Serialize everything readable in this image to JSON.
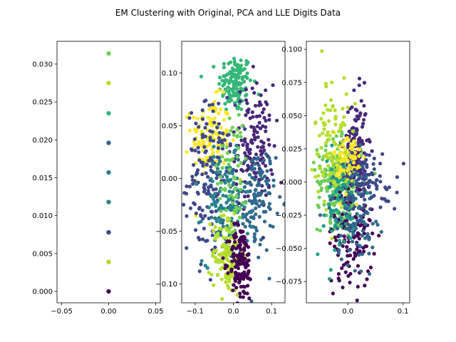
{
  "figure": {
    "title": "EM Clustering with Original, PCA and LLE Digits Data"
  },
  "palette": [
    "#440154",
    "#482878",
    "#3e4989",
    "#31688e",
    "#26828e",
    "#1f9e89",
    "#35b779",
    "#6ece58",
    "#b5de2b",
    "#fde725"
  ],
  "chart_data": [
    {
      "type": "scatter",
      "subplot": "original",
      "xlim": [
        -0.055,
        0.055
      ],
      "ylim": [
        -0.0015,
        0.033
      ],
      "x_ticks": [
        -0.05,
        0.0,
        0.05
      ],
      "x_tick_labels": [
        "−0.05",
        "0.00",
        "0.05"
      ],
      "y_ticks": [
        0.0,
        0.005,
        0.01,
        0.015,
        0.02,
        0.025,
        0.03
      ],
      "y_tick_labels": [
        "0.000",
        "0.005",
        "0.010",
        "0.015",
        "0.020",
        "0.025",
        "0.030"
      ],
      "points": [
        {
          "x": 0.0,
          "y": 0.0,
          "c": 0
        },
        {
          "x": 0.0,
          "y": 0.0039,
          "c": 7
        },
        {
          "x": 0.0,
          "y": 0.0039,
          "c": 8
        },
        {
          "x": 0.0,
          "y": 0.0078,
          "c": 2
        },
        {
          "x": 0.0,
          "y": 0.0118,
          "c": 4
        },
        {
          "x": 0.0,
          "y": 0.0157,
          "c": 4
        },
        {
          "x": 0.0,
          "y": 0.0196,
          "c": 3
        },
        {
          "x": 0.0,
          "y": 0.0235,
          "c": 6
        },
        {
          "x": 0.0,
          "y": 0.0275,
          "c": 8
        },
        {
          "x": 0.0,
          "y": 0.0314,
          "c": 7
        }
      ]
    },
    {
      "type": "scatter",
      "subplot": "pca",
      "xlim": [
        -0.135,
        0.135
      ],
      "ylim": [
        -0.118,
        0.13
      ],
      "x_ticks": [
        -0.1,
        0.0,
        0.1
      ],
      "x_tick_labels": [
        "−0.1",
        "0.0",
        "0.1"
      ],
      "y_ticks": [
        -0.1,
        -0.05,
        0.0,
        0.05,
        0.1
      ],
      "y_tick_labels": [
        "−0.10",
        "−0.05",
        "0.00",
        "0.05",
        "0.10"
      ],
      "clusters": [
        {
          "c": 6,
          "cx": 0.005,
          "cy": 0.09,
          "sx": 0.022,
          "sy": 0.014,
          "n": 140
        },
        {
          "c": 9,
          "cx": -0.06,
          "cy": 0.04,
          "sx": 0.025,
          "sy": 0.018,
          "n": 130
        },
        {
          "c": 1,
          "cx": 0.055,
          "cy": 0.03,
          "sx": 0.025,
          "sy": 0.03,
          "n": 150
        },
        {
          "c": 2,
          "cx": -0.06,
          "cy": 0.0,
          "sx": 0.03,
          "sy": 0.035,
          "n": 170
        },
        {
          "c": 3,
          "cx": 0.06,
          "cy": -0.02,
          "sx": 0.025,
          "sy": 0.025,
          "n": 120
        },
        {
          "c": 4,
          "cx": -0.02,
          "cy": -0.03,
          "sx": 0.03,
          "sy": 0.025,
          "n": 120
        },
        {
          "c": 8,
          "cx": -0.015,
          "cy": -0.07,
          "sx": 0.02,
          "sy": 0.02,
          "n": 140
        },
        {
          "c": 0,
          "cx": 0.02,
          "cy": -0.08,
          "sx": 0.015,
          "sy": 0.018,
          "n": 140
        },
        {
          "c": 7,
          "cx": 0.0,
          "cy": 0.01,
          "sx": 0.02,
          "sy": 0.03,
          "n": 60
        }
      ]
    },
    {
      "type": "scatter",
      "subplot": "lle",
      "xlim": [
        -0.075,
        0.112
      ],
      "ylim": [
        -0.091,
        0.106
      ],
      "x_ticks": [
        0.0,
        0.1
      ],
      "x_tick_labels": [
        "0.0",
        "0.1"
      ],
      "y_ticks": [
        -0.075,
        -0.05,
        -0.025,
        0.0,
        0.025,
        0.05,
        0.075,
        0.1
      ],
      "y_tick_labels": [
        "−0.075",
        "−0.050",
        "−0.025",
        "0.000",
        "0.025",
        "0.050",
        "0.075",
        "0.100"
      ],
      "clusters": [
        {
          "c": 7,
          "cx": -0.015,
          "cy": 0.0,
          "sx": 0.02,
          "sy": 0.015,
          "n": 260
        },
        {
          "c": 1,
          "cx": 0.015,
          "cy": 0.025,
          "sx": 0.01,
          "sy": 0.02,
          "n": 140
        },
        {
          "c": 0,
          "cx": 0.005,
          "cy": -0.04,
          "sx": 0.02,
          "sy": 0.02,
          "n": 130
        },
        {
          "c": 3,
          "cx": 0.01,
          "cy": -0.02,
          "sx": 0.02,
          "sy": 0.02,
          "n": 120
        },
        {
          "c": 9,
          "cx": 0.0,
          "cy": 0.015,
          "sx": 0.012,
          "sy": 0.012,
          "n": 80
        },
        {
          "c": 8,
          "cx": -0.03,
          "cy": 0.03,
          "sx": 0.015,
          "sy": 0.025,
          "n": 90
        },
        {
          "c": 2,
          "cx": 0.04,
          "cy": 0.0,
          "sx": 0.025,
          "sy": 0.012,
          "n": 80
        },
        {
          "c": 5,
          "cx": -0.02,
          "cy": -0.02,
          "sx": 0.02,
          "sy": 0.02,
          "n": 60
        }
      ]
    }
  ]
}
